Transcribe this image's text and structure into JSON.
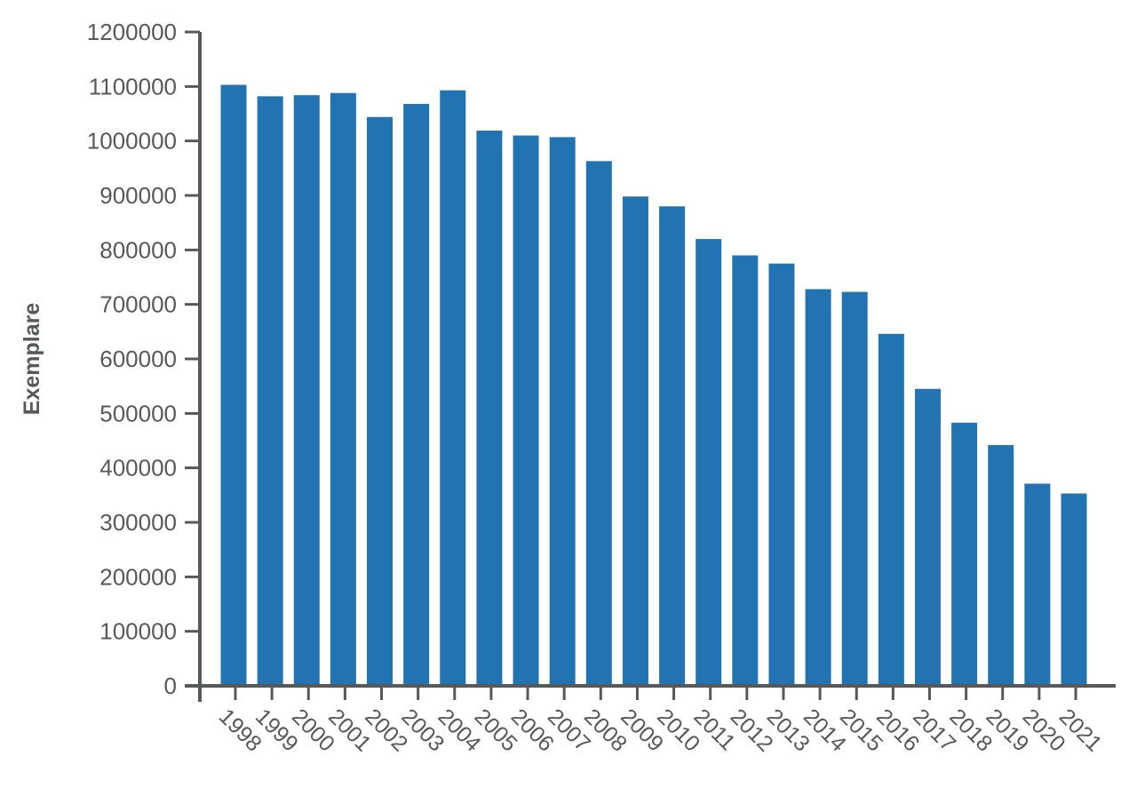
{
  "chart_data": {
    "type": "bar",
    "title": "",
    "xlabel": "",
    "ylabel": "Exemplare",
    "ylim": [
      0,
      1200000
    ],
    "yticks": [
      0,
      100000,
      200000,
      300000,
      400000,
      500000,
      600000,
      700000,
      800000,
      900000,
      1000000,
      1100000,
      1200000
    ],
    "grid": false,
    "legend": "none",
    "bar_color": "#2173b2",
    "axis_color": "#55595c",
    "categories": [
      "1998",
      "1999",
      "2000",
      "2001",
      "2002",
      "2003",
      "2004",
      "2005",
      "2006",
      "2007",
      "2008",
      "2009",
      "2010",
      "2011",
      "2012",
      "2013",
      "2014",
      "2015",
      "2016",
      "2017",
      "2018",
      "2019",
      "2020",
      "2021"
    ],
    "values": [
      1103000,
      1082000,
      1084000,
      1088000,
      1044000,
      1068000,
      1093000,
      1019000,
      1010000,
      1007000,
      963000,
      898000,
      880000,
      820000,
      790000,
      775000,
      728000,
      723000,
      646000,
      545000,
      483000,
      442000,
      371000,
      353000
    ]
  }
}
